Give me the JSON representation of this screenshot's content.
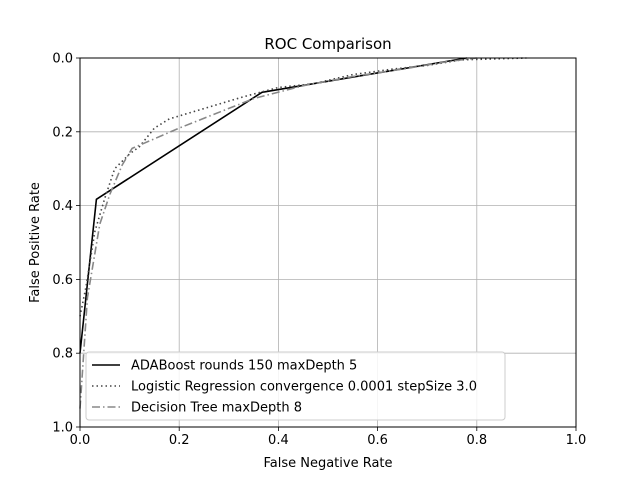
{
  "chart_data": {
    "type": "line",
    "title": "ROC Comparison",
    "xlabel": "False Negative Rate",
    "ylabel": "False Positive Rate",
    "xlim": [
      0.0,
      1.0
    ],
    "ylim": [
      1.0,
      0.0
    ],
    "y_inverted": true,
    "x_ticks": [
      "0.0",
      "0.2",
      "0.4",
      "0.6",
      "0.8",
      "1.0"
    ],
    "y_ticks": [
      "0.0",
      "0.2",
      "0.4",
      "0.6",
      "0.8",
      "1.0"
    ],
    "grid": true,
    "legend_position": "lower-left",
    "series": [
      {
        "name": "ADABoost rounds 150 maxDepth 5",
        "style": "solid",
        "color": "#000000",
        "points": [
          [
            0.0,
            0.8
          ],
          [
            0.033,
            0.383
          ],
          [
            0.367,
            0.093
          ],
          [
            0.78,
            0.0
          ]
        ]
      },
      {
        "name": "Logistic Regression convergence 0.0001 stepSize 3.0",
        "style": "dotted",
        "color": "#444444",
        "points": [
          [
            0.0,
            0.7
          ],
          [
            0.012,
            0.62
          ],
          [
            0.03,
            0.47
          ],
          [
            0.05,
            0.38
          ],
          [
            0.07,
            0.3
          ],
          [
            0.1,
            0.26
          ],
          [
            0.12,
            0.24
          ],
          [
            0.15,
            0.19
          ],
          [
            0.18,
            0.165
          ],
          [
            0.23,
            0.145
          ],
          [
            0.28,
            0.125
          ],
          [
            0.33,
            0.105
          ],
          [
            0.4,
            0.08
          ],
          [
            0.47,
            0.07
          ],
          [
            0.55,
            0.045
          ],
          [
            0.63,
            0.03
          ],
          [
            0.7,
            0.02
          ],
          [
            0.77,
            0.005
          ],
          [
            0.9,
            0.0
          ]
        ]
      },
      {
        "name": "Decision Tree maxDepth 8",
        "style": "dashdot",
        "color": "#888888",
        "points": [
          [
            0.0,
            0.95
          ],
          [
            0.015,
            0.65
          ],
          [
            0.04,
            0.45
          ],
          [
            0.06,
            0.37
          ],
          [
            0.085,
            0.29
          ],
          [
            0.105,
            0.245
          ],
          [
            0.2,
            0.19
          ],
          [
            0.35,
            0.11
          ],
          [
            0.45,
            0.075
          ],
          [
            0.55,
            0.05
          ],
          [
            0.65,
            0.03
          ],
          [
            0.74,
            0.01
          ],
          [
            0.8,
            0.0
          ]
        ]
      }
    ]
  }
}
